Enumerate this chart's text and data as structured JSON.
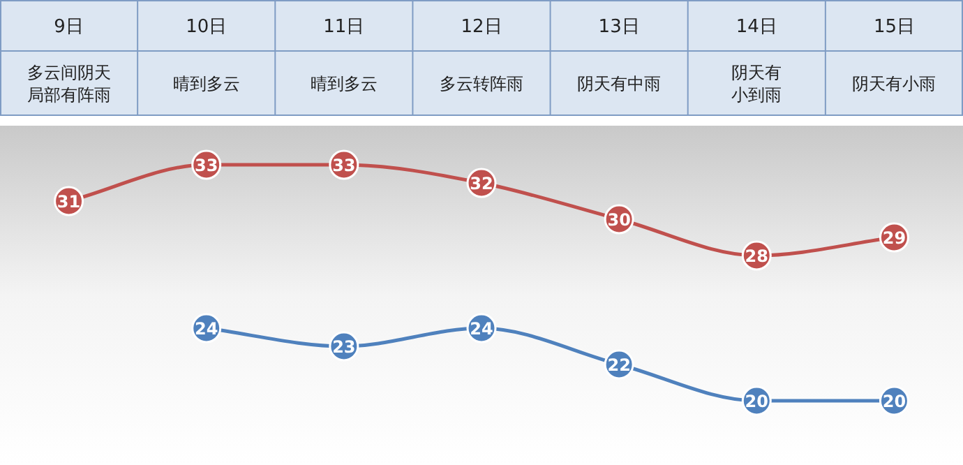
{
  "chart_data": {
    "type": "line",
    "categories": [
      "9日",
      "10日",
      "11日",
      "12日",
      "13日",
      "14日",
      "15日"
    ],
    "annotations": [
      "多云间阴天局部有阵雨",
      "晴到多云",
      "晴到多云",
      "多云转阵雨",
      "阴天有中雨",
      "阴天有小到雨",
      "阴天有小雨"
    ],
    "series": [
      {
        "color": "#c0504d",
        "values": [
          31,
          33,
          33,
          32,
          30,
          28,
          29
        ]
      },
      {
        "color": "#4f81bd",
        "values": [
          null,
          24,
          23,
          24,
          22,
          20,
          20
        ]
      }
    ],
    "data_labels": true,
    "marker": "circle",
    "line_style": "solid",
    "grid": false
  }
}
